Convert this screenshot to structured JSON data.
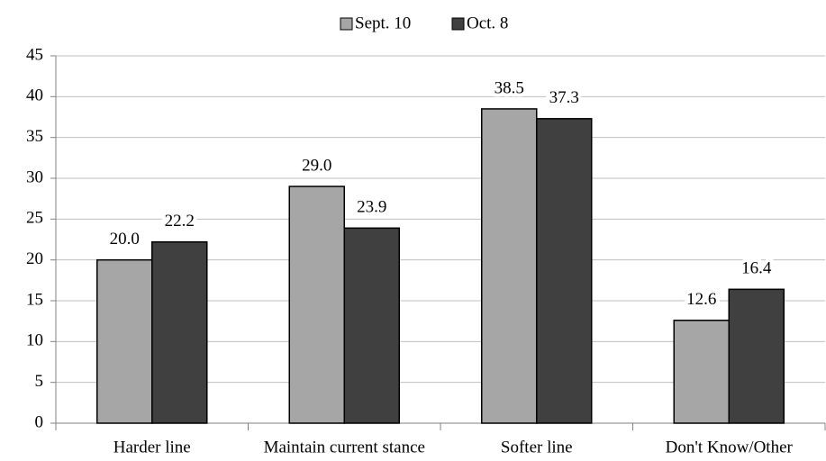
{
  "chart_data": {
    "type": "bar",
    "categories": [
      "Harder line",
      "Maintain current stance",
      "Softer line",
      "Don't Know/Other"
    ],
    "series": [
      {
        "name": "Sept. 10",
        "color": "#a6a6a6",
        "values": [
          20.0,
          29.0,
          38.5,
          12.6
        ],
        "value_labels": [
          "20.0",
          "29.0",
          "38.5",
          "12.6"
        ]
      },
      {
        "name": "Oct. 8",
        "color": "#404040",
        "values": [
          22.2,
          23.9,
          37.3,
          16.4
        ]
      }
    ],
    "ylim": [
      0,
      45
    ],
    "yticks": [
      0,
      5,
      10,
      15,
      20,
      25,
      30,
      35,
      40,
      45
    ],
    "grid": true,
    "legend": "top"
  }
}
